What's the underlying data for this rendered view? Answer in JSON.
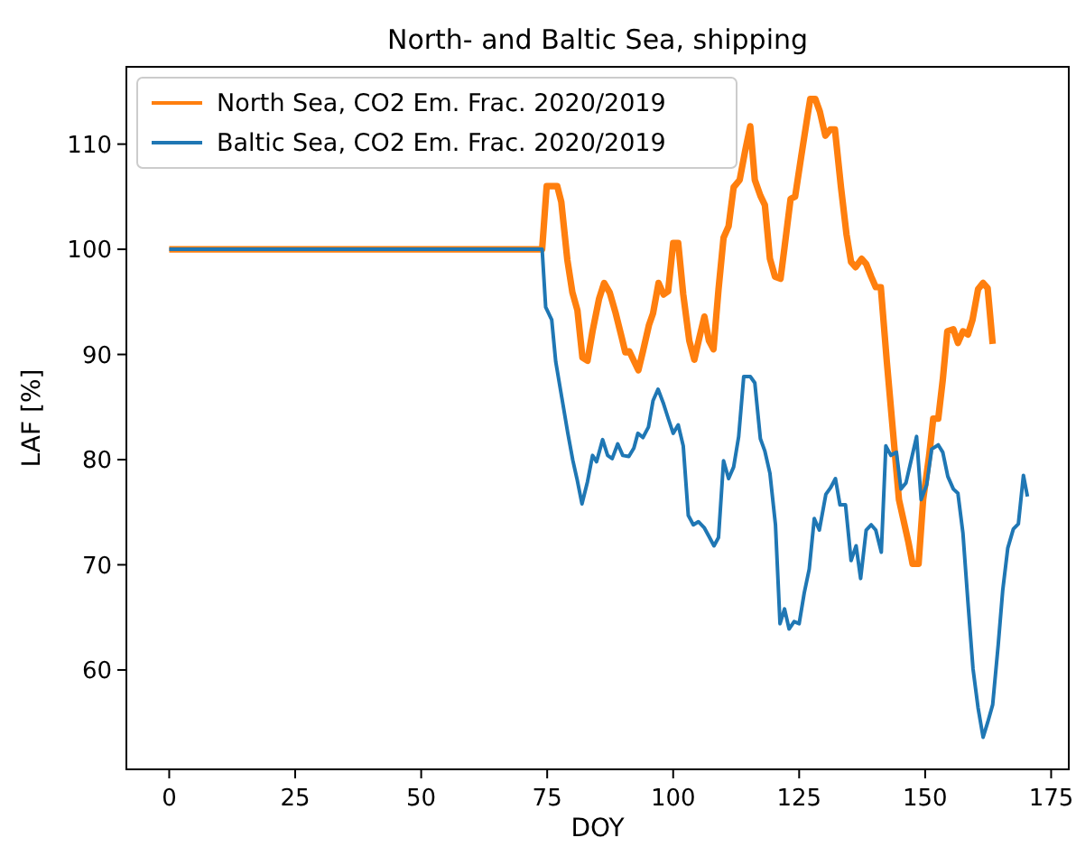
{
  "chart_data": {
    "type": "line",
    "title": "North- and Baltic Sea, shipping",
    "xlabel": "DOY",
    "ylabel": "LAF [%]",
    "xlim": [
      -8.5,
      178.5
    ],
    "xticks": [
      0,
      25,
      50,
      75,
      100,
      125,
      150,
      175
    ],
    "ylim": [
      50.55,
      117.35
    ],
    "yticks": [
      60,
      70,
      80,
      90,
      100,
      110
    ],
    "grid": false,
    "legend": "top left",
    "line_style": "solid",
    "series": [
      {
        "name": "North Sea, CO2 Em. Frac. 2020/2019",
        "color": "#ff7f0e",
        "x": [
          0,
          74,
          74.9,
          77,
          77.8,
          79,
          80,
          81,
          82,
          83,
          84,
          85.3,
          86.3,
          87.4,
          88.6,
          89.8,
          90.5,
          91.3,
          92.3,
          93.1,
          94,
          95.2,
          96,
          97.1,
          98.1,
          99,
          100,
          101,
          102,
          103.2,
          104.2,
          105.2,
          106.2,
          107.1,
          108,
          109,
          110,
          111,
          112,
          113.2,
          114.3,
          115.3,
          116.2,
          117.3,
          118.2,
          119.2,
          120.2,
          121.3,
          122.1,
          123.3,
          124.2,
          125.4,
          126.6,
          127.2,
          128.2,
          129.1,
          130.2,
          131.2,
          132.1,
          133.3,
          134.4,
          135.3,
          136.2,
          137.4,
          138.3,
          139.3,
          140.2,
          141.2,
          142.4,
          144.8,
          146.7,
          147.5,
          148.7,
          149.6,
          150.8,
          151.6,
          152.6,
          153.5,
          154.4,
          155.6,
          156.5,
          157.5,
          158.5,
          159.4,
          160.5,
          161.5,
          162.4,
          163.4
        ],
        "values": [
          100,
          100,
          106,
          106,
          104.5,
          99,
          95.9,
          94.2,
          89.7,
          89.4,
          92.2,
          95.3,
          96.8,
          95.9,
          93.9,
          91.6,
          90.2,
          90.3,
          89.3,
          88.5,
          90.3,
          92.8,
          93.9,
          96.8,
          95.7,
          96,
          100.6,
          100.6,
          95.7,
          91.3,
          89.5,
          91.6,
          93.6,
          91.3,
          90.5,
          96.2,
          101.1,
          102.2,
          105.9,
          106.6,
          109.4,
          111.7,
          106.6,
          105.1,
          104.2,
          99.1,
          97.4,
          97.2,
          100.2,
          104.8,
          105,
          108.8,
          112.5,
          114.3,
          114.3,
          113.1,
          110.8,
          111.4,
          111.4,
          105.9,
          101.4,
          98.8,
          98.3,
          99.1,
          98.6,
          97.4,
          96.4,
          96.4,
          89.3,
          76.2,
          72.1,
          70.1,
          70.1,
          76.2,
          80.4,
          83.9,
          83.9,
          87.6,
          92.2,
          92.4,
          91.1,
          92.2,
          91.9,
          93.3,
          96.2,
          96.8,
          96.3,
          91
        ]
      },
      {
        "name": "Baltic Sea, CO2 Em. Frac. 2020/2019",
        "color": "#1f77b4",
        "x": [
          0,
          74,
          74.7,
          75.9,
          76.7,
          77.9,
          79.1,
          80.1,
          80.9,
          81.9,
          83,
          84,
          84.8,
          86,
          87,
          87.9,
          89,
          90,
          91.2,
          92.2,
          93,
          94,
          95.1,
          96,
          97,
          98.1,
          99.1,
          100,
          101,
          102,
          103,
          104,
          105,
          106.2,
          107.1,
          108.1,
          109,
          110,
          111,
          112,
          113,
          114,
          115.3,
          116.2,
          117.3,
          118.2,
          119.2,
          120.3,
          121.2,
          122.1,
          123,
          124,
          125,
          126,
          127,
          128,
          129,
          130.3,
          131.2,
          132.2,
          133.1,
          134.2,
          135.3,
          136.3,
          137.2,
          138.3,
          139.3,
          140.2,
          141.3,
          142.2,
          143.2,
          144.3,
          145.2,
          146.2,
          147.3,
          148.3,
          149.2,
          150.3,
          151.3,
          152.6,
          153.5,
          154.5,
          155.6,
          156.5,
          157.5,
          158.5,
          159.5,
          160.5,
          161.5,
          162.4,
          163.4,
          164.5,
          165.4,
          166.4,
          167.5,
          168.5,
          169.5,
          170.3
        ],
        "values": [
          100,
          100,
          94.5,
          93.3,
          89.3,
          85.9,
          82.5,
          79.9,
          78.2,
          75.8,
          77.9,
          80.4,
          79.8,
          81.9,
          80.4,
          80.1,
          81.5,
          80.4,
          80.3,
          81.1,
          82.5,
          82.1,
          83.1,
          85.6,
          86.7,
          85.3,
          83.8,
          82.5,
          83.3,
          81.3,
          74.7,
          73.8,
          74.1,
          73.5,
          72.7,
          71.8,
          72.6,
          79.9,
          78.2,
          79.3,
          82.2,
          87.9,
          87.9,
          87.3,
          82,
          80.8,
          78.7,
          73.8,
          64.4,
          65.8,
          63.9,
          64.6,
          64.4,
          67.3,
          69.6,
          74.4,
          73.3,
          76.7,
          77.3,
          78.2,
          75.7,
          75.7,
          70.4,
          71.8,
          68.7,
          73.3,
          73.8,
          73.3,
          71.2,
          81.3,
          80.4,
          80.7,
          77.2,
          77.8,
          80.1,
          82.2,
          76.2,
          77.6,
          81,
          81.4,
          80.7,
          78.4,
          77.2,
          76.8,
          73,
          66.4,
          60.1,
          56.4,
          53.6,
          55,
          56.7,
          62.4,
          67.6,
          71.6,
          73.4,
          73.9,
          78.5,
          76.5
        ]
      }
    ]
  }
}
